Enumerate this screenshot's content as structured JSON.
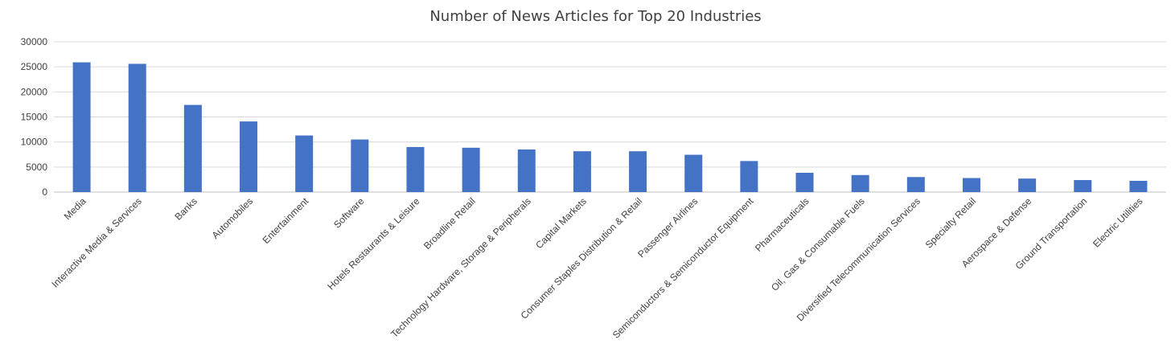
{
  "chart_data": {
    "type": "bar",
    "title": "Number of News Articles for Top 20 Industries",
    "xlabel": "",
    "ylabel": "",
    "ylim": [
      0,
      30000
    ],
    "yticks": [
      0,
      5000,
      10000,
      15000,
      20000,
      25000,
      30000
    ],
    "grid": true,
    "legend": "none",
    "bar_color": "#4472C4",
    "categories": [
      "Media",
      "Interactive Media & Services",
      "Banks",
      "Automobiles",
      "Entertainment",
      "Software",
      "Hotels Restaurants & Leisure",
      "Broadline Retail",
      "Technology Hardware, Storage & Peripherals",
      "Capital Markets",
      "Consumer Staples Distribution & Retail",
      "Passenger Airlines",
      "Semiconductors & Semiconductor Equipment",
      "Pharmaceuticals",
      "Oil, Gas & Consumable Fuels",
      "Diversified Telecommunication Services",
      "Specialty Retail",
      "Aerospace & Defense",
      "Ground Transportation",
      "Electric Utilities"
    ],
    "values": [
      25900,
      25600,
      17400,
      14100,
      11300,
      10500,
      9000,
      8850,
      8500,
      8150,
      8150,
      7450,
      6200,
      3850,
      3400,
      3000,
      2800,
      2700,
      2400,
      2250
    ]
  }
}
